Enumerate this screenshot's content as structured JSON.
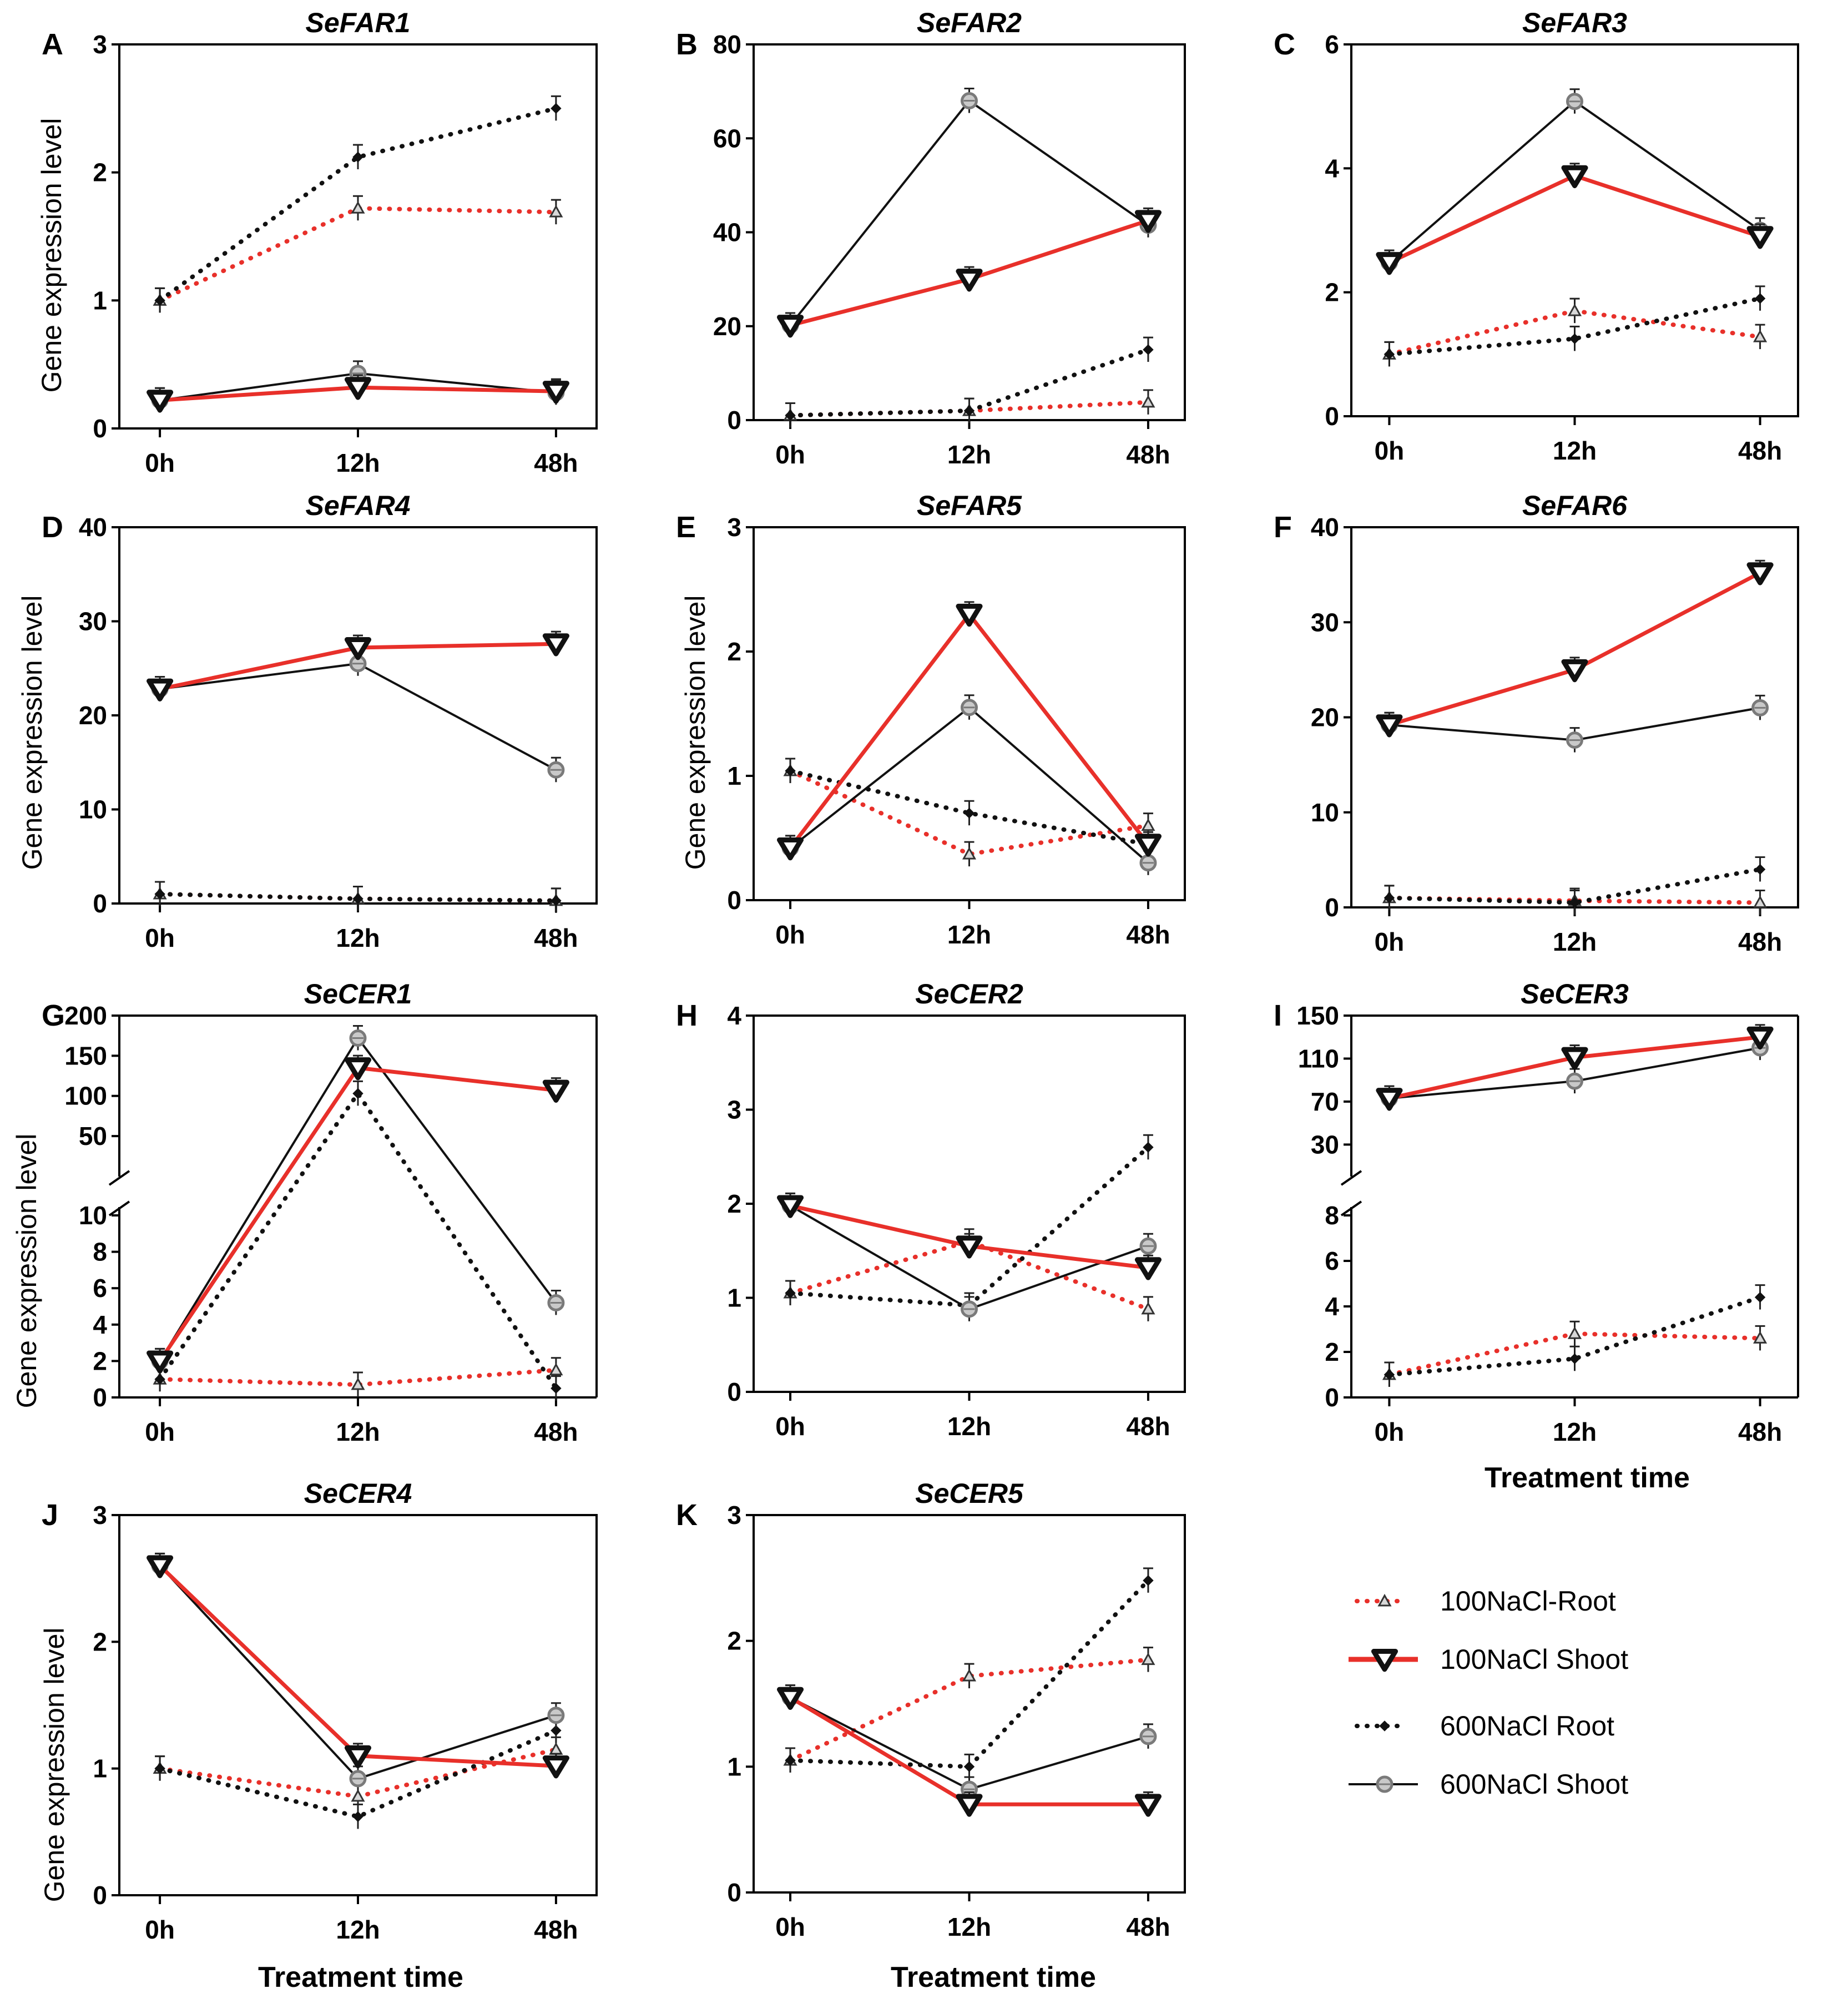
{
  "figure": {
    "x_tick_labels": [
      "0h",
      "12h",
      "48h"
    ],
    "y_axis_label": "Gene expression level",
    "x_axis_label": "Treatment time"
  },
  "legend": {
    "items": [
      {
        "name": "100NaCl-Root",
        "color": "#e8302a",
        "dash": "dotted",
        "marker": "triangle-up"
      },
      {
        "name": "100NaCl Shoot",
        "color": "#e8302a",
        "dash": "solid",
        "marker": "triangle-down"
      },
      {
        "name": "600NaCl Root",
        "color": "#111111",
        "dash": "dotted",
        "marker": "diamond"
      },
      {
        "name": "600NaCl Shoot",
        "color": "#111111",
        "dash": "solid",
        "marker": "circle"
      }
    ]
  },
  "chart_data": [
    {
      "panel": "A",
      "title": "SeFAR1",
      "type": "line",
      "categories": [
        "0h",
        "12h",
        "48h"
      ],
      "ylim": [
        0,
        3
      ],
      "yticks": [
        0,
        1,
        2,
        3
      ],
      "series": [
        {
          "name": "100NaCl-Root",
          "values": [
            1.0,
            1.72,
            1.69
          ]
        },
        {
          "name": "100NaCl Shoot",
          "values": [
            0.22,
            0.32,
            0.29
          ]
        },
        {
          "name": "600NaCl Root",
          "values": [
            1.0,
            2.12,
            2.5
          ]
        },
        {
          "name": "600NaCl Shoot",
          "values": [
            0.22,
            0.43,
            0.28
          ]
        }
      ]
    },
    {
      "panel": "B",
      "title": "SeFAR2",
      "type": "line",
      "categories": [
        "0h",
        "12h",
        "48h"
      ],
      "ylim": [
        0,
        80
      ],
      "yticks": [
        0,
        20,
        40,
        60,
        80
      ],
      "series": [
        {
          "name": "100NaCl-Root",
          "values": [
            1.0,
            2.0,
            3.8
          ]
        },
        {
          "name": "100NaCl Shoot",
          "values": [
            20.2,
            30.0,
            42.5
          ]
        },
        {
          "name": "600NaCl Root",
          "values": [
            1.0,
            2.0,
            15.0
          ]
        },
        {
          "name": "600NaCl Shoot",
          "values": [
            20.2,
            68.0,
            41.5
          ]
        }
      ]
    },
    {
      "panel": "C",
      "title": "SeFAR3",
      "type": "line",
      "categories": [
        "0h",
        "12h",
        "48h"
      ],
      "ylim": [
        0,
        6
      ],
      "yticks": [
        0,
        2,
        4,
        6
      ],
      "series": [
        {
          "name": "100NaCl-Root",
          "values": [
            1.0,
            1.7,
            1.28
          ]
        },
        {
          "name": "100NaCl Shoot",
          "values": [
            2.48,
            3.88,
            2.9
          ]
        },
        {
          "name": "600NaCl Root",
          "values": [
            1.0,
            1.25,
            1.9
          ]
        },
        {
          "name": "600NaCl Shoot",
          "values": [
            2.48,
            5.08,
            3.0
          ]
        }
      ]
    },
    {
      "panel": "D",
      "title": "SeFAR4",
      "type": "line",
      "categories": [
        "0h",
        "12h",
        "48h"
      ],
      "ylim": [
        0,
        40
      ],
      "yticks": [
        0,
        10,
        20,
        30,
        40
      ],
      "series": [
        {
          "name": "100NaCl-Root",
          "values": [
            1.0,
            0.5,
            0.3
          ]
        },
        {
          "name": "100NaCl Shoot",
          "values": [
            22.8,
            27.2,
            27.6
          ]
        },
        {
          "name": "600NaCl Root",
          "values": [
            1.0,
            0.5,
            0.3
          ]
        },
        {
          "name": "600NaCl Shoot",
          "values": [
            22.8,
            25.5,
            14.2
          ]
        }
      ]
    },
    {
      "panel": "E",
      "title": "SeFAR5",
      "type": "line",
      "categories": [
        "0h",
        "12h",
        "48h"
      ],
      "ylim": [
        0,
        3
      ],
      "yticks": [
        0,
        1,
        2,
        3
      ],
      "baseline_dotted": true,
      "series": [
        {
          "name": "100NaCl-Root",
          "values": [
            1.04,
            0.37,
            0.6
          ]
        },
        {
          "name": "100NaCl Shoot",
          "values": [
            0.42,
            2.3,
            0.45
          ]
        },
        {
          "name": "600NaCl Root",
          "values": [
            1.04,
            0.7,
            0.45
          ]
        },
        {
          "name": "600NaCl Shoot",
          "values": [
            0.42,
            1.55,
            0.3
          ]
        }
      ]
    },
    {
      "panel": "F",
      "title": "SeFAR6",
      "type": "line",
      "categories": [
        "0h",
        "12h",
        "48h"
      ],
      "ylim": [
        0,
        40
      ],
      "yticks": [
        0,
        10,
        20,
        30,
        40
      ],
      "series": [
        {
          "name": "100NaCl-Root",
          "values": [
            1.0,
            0.7,
            0.5
          ]
        },
        {
          "name": "100NaCl Shoot",
          "values": [
            19.2,
            25.0,
            35.2
          ]
        },
        {
          "name": "600NaCl Root",
          "values": [
            1.0,
            0.5,
            4.0
          ]
        },
        {
          "name": "600NaCl Shoot",
          "values": [
            19.2,
            17.6,
            21.0
          ]
        }
      ]
    },
    {
      "panel": "G",
      "title": "SeCER1",
      "type": "line",
      "categories": [
        "0h",
        "12h",
        "48h"
      ],
      "broken_axis": true,
      "lower_ylim": [
        0,
        10
      ],
      "lower_yticks": [
        0,
        2,
        4,
        6,
        8,
        10
      ],
      "upper_ylim": [
        10,
        200
      ],
      "upper_yticks": [
        50,
        100,
        150,
        200
      ],
      "series": [
        {
          "name": "100NaCl-Root",
          "values": [
            1.0,
            0.7,
            1.5
          ]
        },
        {
          "name": "100NaCl Shoot",
          "values": [
            2.0,
            135,
            107
          ]
        },
        {
          "name": "600NaCl Root",
          "values": [
            1.0,
            103,
            0.5
          ]
        },
        {
          "name": "600NaCl Shoot",
          "values": [
            2.0,
            172,
            5.2
          ]
        }
      ]
    },
    {
      "panel": "H",
      "title": "SeCER2",
      "type": "line",
      "categories": [
        "0h",
        "12h",
        "48h"
      ],
      "ylim": [
        0,
        4
      ],
      "yticks": [
        0,
        1,
        2,
        3,
        4
      ],
      "series": [
        {
          "name": "100NaCl-Root",
          "values": [
            1.05,
            1.6,
            0.88
          ]
        },
        {
          "name": "100NaCl Shoot",
          "values": [
            1.98,
            1.55,
            1.32
          ]
        },
        {
          "name": "600NaCl Root",
          "values": [
            1.05,
            0.92,
            2.6
          ]
        },
        {
          "name": "600NaCl Shoot",
          "values": [
            1.98,
            0.88,
            1.55
          ]
        }
      ]
    },
    {
      "panel": "I",
      "title": "SeCER3",
      "type": "line",
      "categories": [
        "0h",
        "12h",
        "48h"
      ],
      "broken_axis": true,
      "lower_ylim": [
        0,
        8
      ],
      "lower_yticks": [
        0,
        2,
        4,
        6,
        8
      ],
      "upper_ylim": [
        8,
        150
      ],
      "upper_yticks": [
        30,
        70,
        110,
        150
      ],
      "series": [
        {
          "name": "100NaCl-Root",
          "values": [
            1.0,
            2.8,
            2.6
          ]
        },
        {
          "name": "100NaCl Shoot",
          "values": [
            73,
            111,
            130
          ]
        },
        {
          "name": "600NaCl Root",
          "values": [
            1.0,
            1.7,
            4.4
          ]
        },
        {
          "name": "600NaCl Shoot",
          "values": [
            73,
            89,
            120
          ]
        }
      ]
    },
    {
      "panel": "J",
      "title": "SeCER4",
      "type": "line",
      "categories": [
        "0h",
        "12h",
        "48h"
      ],
      "ylim": [
        0,
        3
      ],
      "yticks": [
        0,
        1,
        2,
        3
      ],
      "series": [
        {
          "name": "100NaCl-Root",
          "values": [
            1.0,
            0.78,
            1.15
          ]
        },
        {
          "name": "100NaCl Shoot",
          "values": [
            2.6,
            1.1,
            1.02
          ]
        },
        {
          "name": "600NaCl Root",
          "values": [
            1.0,
            0.62,
            1.3
          ]
        },
        {
          "name": "600NaCl Shoot",
          "values": [
            2.6,
            0.92,
            1.42
          ]
        }
      ]
    },
    {
      "panel": "K",
      "title": "SeCER5",
      "type": "line",
      "categories": [
        "0h",
        "12h",
        "48h"
      ],
      "ylim": [
        0,
        3
      ],
      "yticks": [
        0,
        1,
        2,
        3
      ],
      "series": [
        {
          "name": "100NaCl-Root",
          "values": [
            1.05,
            1.72,
            1.85
          ]
        },
        {
          "name": "100NaCl Shoot",
          "values": [
            1.55,
            0.7,
            0.7
          ]
        },
        {
          "name": "600NaCl Root",
          "values": [
            1.05,
            1.0,
            2.48
          ]
        },
        {
          "name": "600NaCl Shoot",
          "values": [
            1.55,
            0.82,
            1.24
          ]
        }
      ]
    }
  ]
}
